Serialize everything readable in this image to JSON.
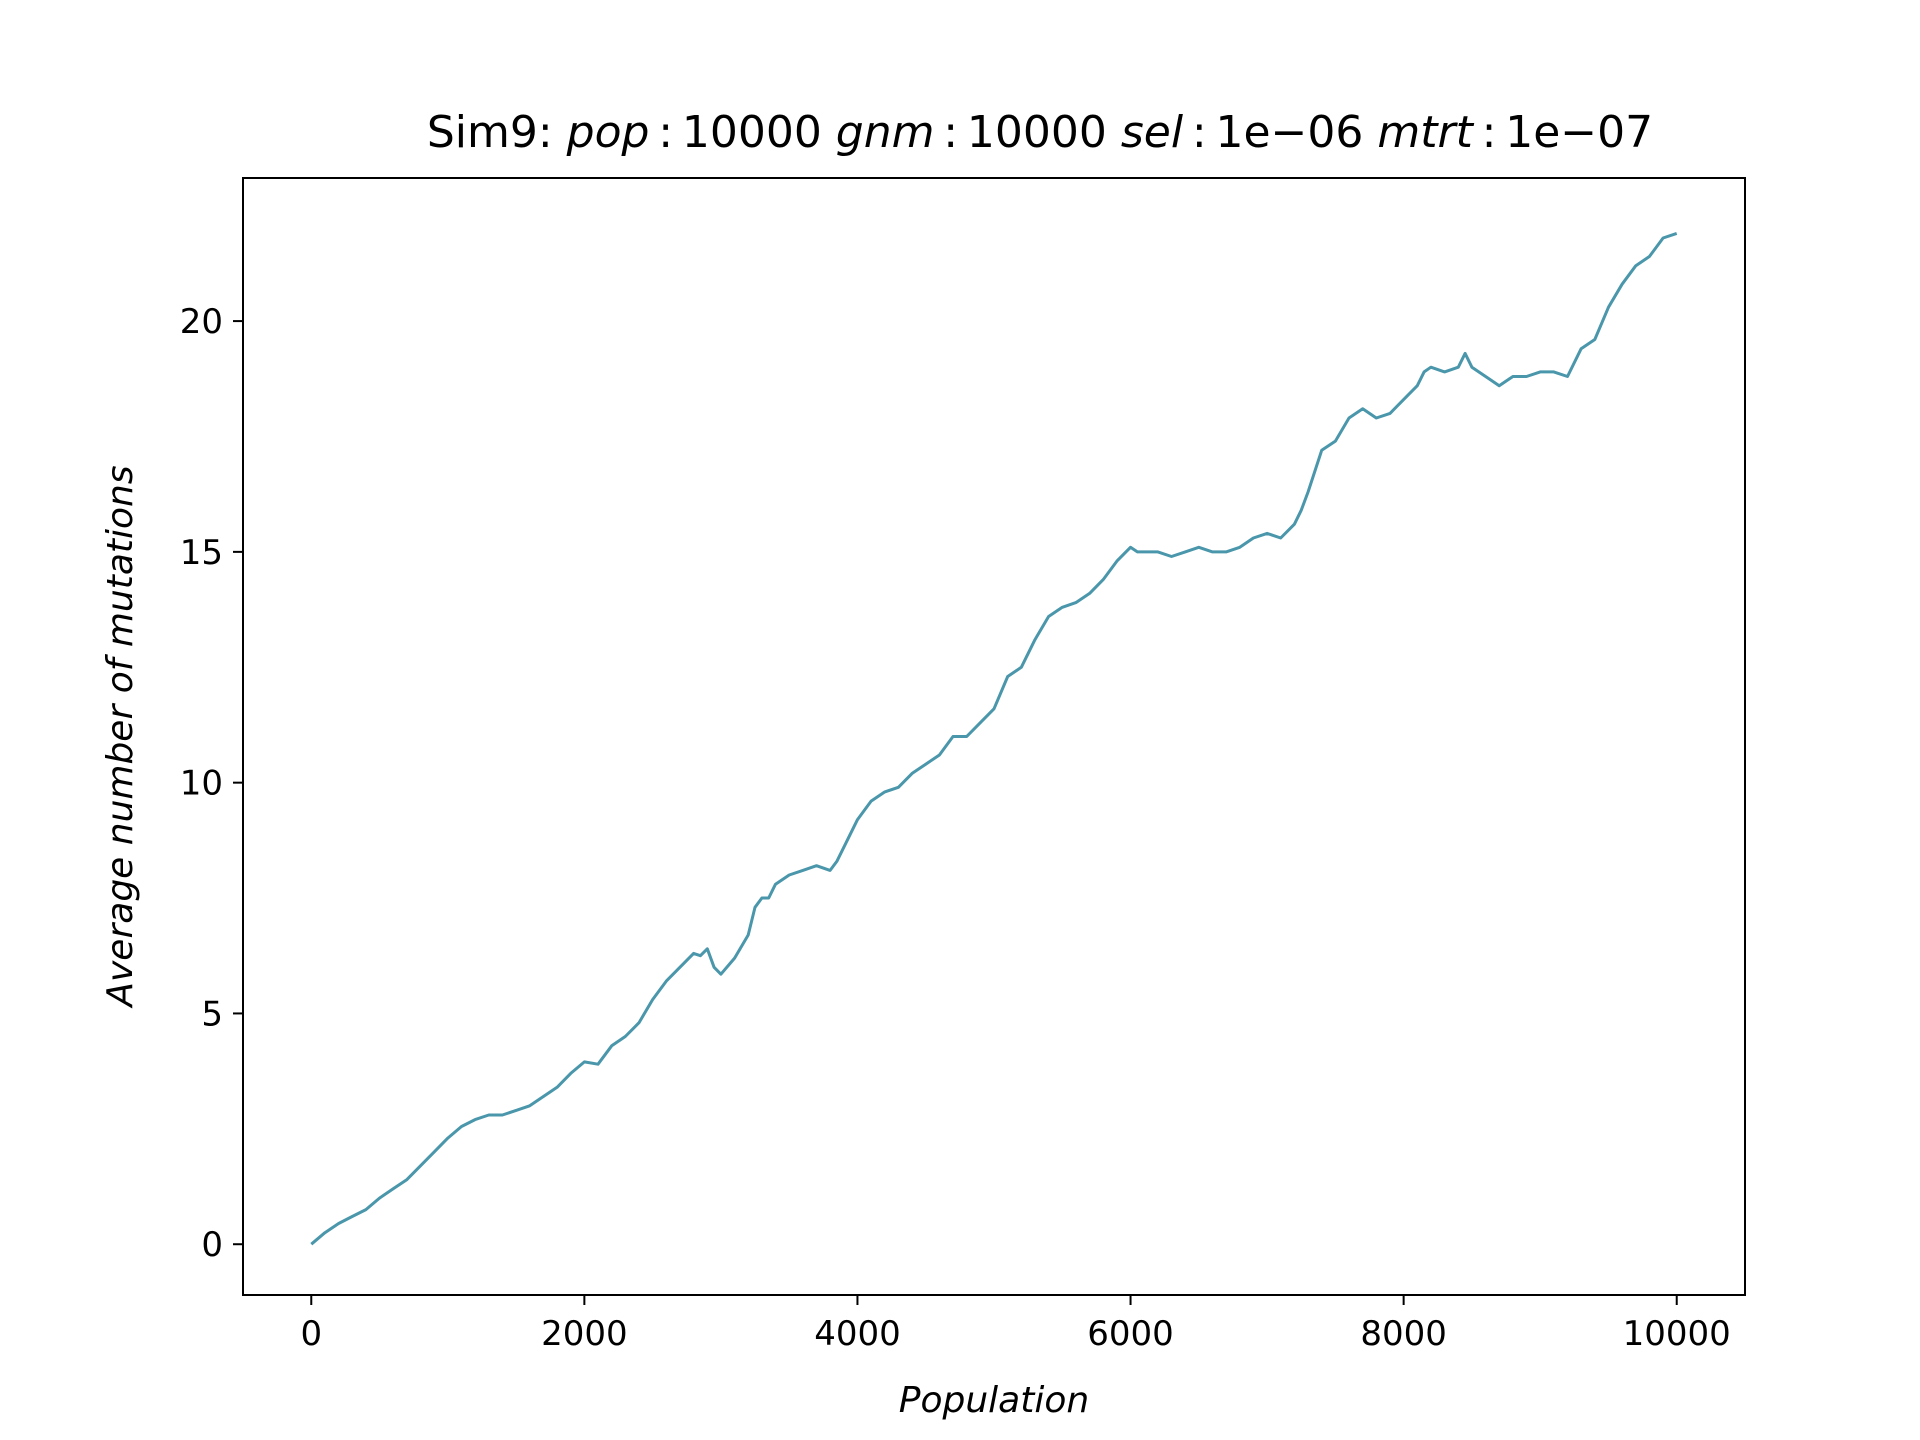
{
  "chart_data": {
    "type": "line",
    "title_prefix": "Sim9: ",
    "title_parts": [
      {
        "var": "pop",
        "sep": ":",
        "val": "10000"
      },
      {
        "var": "gnm",
        "sep": ":",
        "val": "10000"
      },
      {
        "var": "sel",
        "sep": ":",
        "val": "1e−06"
      },
      {
        "var": "mtrt",
        "sep": ":",
        "val": "1e−07"
      }
    ],
    "xlabel": "Population",
    "ylabel": "Average number of mutations",
    "xlim": [
      -500,
      10500
    ],
    "ylim": [
      -1.1,
      23.1
    ],
    "xticks": [
      0,
      2000,
      4000,
      6000,
      8000,
      10000
    ],
    "xtick_labels": [
      "0",
      "2000",
      "4000",
      "6000",
      "8000",
      "10000"
    ],
    "yticks": [
      0,
      5,
      10,
      15,
      20
    ],
    "ytick_labels": [
      "0",
      "5",
      "10",
      "15",
      "20"
    ],
    "grid": false,
    "series": [
      {
        "color": "#4a96ab",
        "x": [
          0,
          100,
          200,
          300,
          400,
          500,
          600,
          700,
          800,
          900,
          1000,
          1100,
          1200,
          1300,
          1400,
          1500,
          1600,
          1700,
          1800,
          1900,
          2000,
          2100,
          2200,
          2300,
          2400,
          2500,
          2600,
          2700,
          2800,
          2850,
          2900,
          2950,
          3000,
          3100,
          3200,
          3250,
          3300,
          3350,
          3400,
          3500,
          3600,
          3700,
          3800,
          3850,
          3900,
          4000,
          4100,
          4200,
          4300,
          4400,
          4500,
          4600,
          4700,
          4800,
          4900,
          5000,
          5100,
          5200,
          5300,
          5400,
          5500,
          5600,
          5700,
          5800,
          5900,
          6000,
          6050,
          6100,
          6200,
          6300,
          6400,
          6500,
          6600,
          6700,
          6800,
          6900,
          7000,
          7100,
          7200,
          7250,
          7300,
          7400,
          7500,
          7600,
          7700,
          7800,
          7900,
          8000,
          8100,
          8150,
          8200,
          8300,
          8400,
          8450,
          8500,
          8600,
          8700,
          8800,
          8900,
          9000,
          9100,
          9200,
          9300,
          9400,
          9500,
          9600,
          9700,
          9800,
          9900,
          10000
        ],
        "y": [
          0,
          0.25,
          0.45,
          0.6,
          0.75,
          1.0,
          1.2,
          1.4,
          1.7,
          2.0,
          2.3,
          2.55,
          2.7,
          2.8,
          2.8,
          2.9,
          3.0,
          3.2,
          3.4,
          3.7,
          3.95,
          3.9,
          4.3,
          4.5,
          4.8,
          5.3,
          5.7,
          6.0,
          6.3,
          6.25,
          6.4,
          6.0,
          5.85,
          6.2,
          6.7,
          7.3,
          7.5,
          7.5,
          7.8,
          8.0,
          8.1,
          8.2,
          8.1,
          8.3,
          8.6,
          9.2,
          9.6,
          9.8,
          9.9,
          10.2,
          10.4,
          10.6,
          11.0,
          11.0,
          11.3,
          11.6,
          12.3,
          12.5,
          13.1,
          13.6,
          13.8,
          13.9,
          14.1,
          14.4,
          14.8,
          15.1,
          15.0,
          15.0,
          15.0,
          14.9,
          15.0,
          15.1,
          15.0,
          15.0,
          15.1,
          15.3,
          15.4,
          15.3,
          15.6,
          15.9,
          16.3,
          17.2,
          17.4,
          17.9,
          18.1,
          17.9,
          18.0,
          18.3,
          18.6,
          18.9,
          19.0,
          18.9,
          19.0,
          19.3,
          19.0,
          18.8,
          18.6,
          18.8,
          18.8,
          18.9,
          18.9,
          18.8,
          19.4,
          19.6,
          20.3,
          20.8,
          21.2,
          21.4,
          21.8,
          21.9
        ]
      }
    ]
  }
}
